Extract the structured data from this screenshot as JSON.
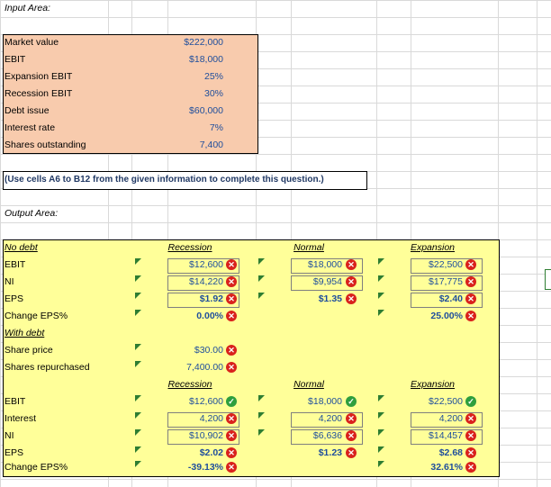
{
  "input_area": {
    "title": "Input Area:",
    "rows": [
      {
        "label": "Market value",
        "value": "$222,000"
      },
      {
        "label": "EBIT",
        "value": "$18,000"
      },
      {
        "label": "Expansion EBIT",
        "value": "25%"
      },
      {
        "label": "Recession EBIT",
        "value": "30%"
      },
      {
        "label": "Debt issue",
        "value": "$60,000"
      },
      {
        "label": "Interest rate",
        "value": "7%"
      },
      {
        "label": "Shares outstanding",
        "value": "7,400"
      }
    ]
  },
  "note": "(Use cells A6 to B12 from the given information to complete this question.)",
  "output_area": {
    "title": "Output Area:",
    "no_debt": {
      "header": "No debt",
      "col_recession": "Recession",
      "col_normal": "Normal",
      "col_expansion": "Expansion",
      "rows": [
        {
          "label": "EBIT",
          "recession": "$12,600",
          "normal": "$18,000",
          "expansion": "$22,500"
        },
        {
          "label": "NI",
          "recession": "$14,220",
          "normal": "$9,954",
          "expansion": "$17,775"
        },
        {
          "label": "EPS",
          "recession": "$1.92",
          "normal": "$1.35",
          "expansion": "$2.40"
        },
        {
          "label": "Change EPS%",
          "recession": "0.00%",
          "normal": "",
          "expansion": "25.00%"
        }
      ]
    },
    "with_debt": {
      "header": "With debt",
      "share_price_label": "Share price",
      "share_price_value": "$30.00",
      "shares_repurchased_label": "Shares repurchased",
      "shares_repurchased_value": "7,400.00",
      "col_recession": "Recession",
      "col_normal": "Normal",
      "col_expansion": "Expansion",
      "rows": [
        {
          "label": "EBIT",
          "recession": "$12,600",
          "normal": "$18,000",
          "expansion": "$22,500"
        },
        {
          "label": "Interest",
          "recession": "4,200",
          "normal": "4,200",
          "expansion": "4,200"
        },
        {
          "label": "NI",
          "recession": "$10,902",
          "normal": "$6,636",
          "expansion": "$14,457"
        },
        {
          "label": "EPS",
          "recession": "$2.02",
          "normal": "$1.23",
          "expansion": "$2.68"
        },
        {
          "label": "Change EPS%",
          "recession": "-39.13%",
          "normal": "",
          "expansion": "32.61%"
        }
      ]
    }
  },
  "colors": {
    "input_fill": "#f8cbad",
    "output_fill": "#ffff99",
    "value_blue": "#1f4e9c",
    "error_red": "#d9211c",
    "ok_green": "#2e9f3e"
  }
}
